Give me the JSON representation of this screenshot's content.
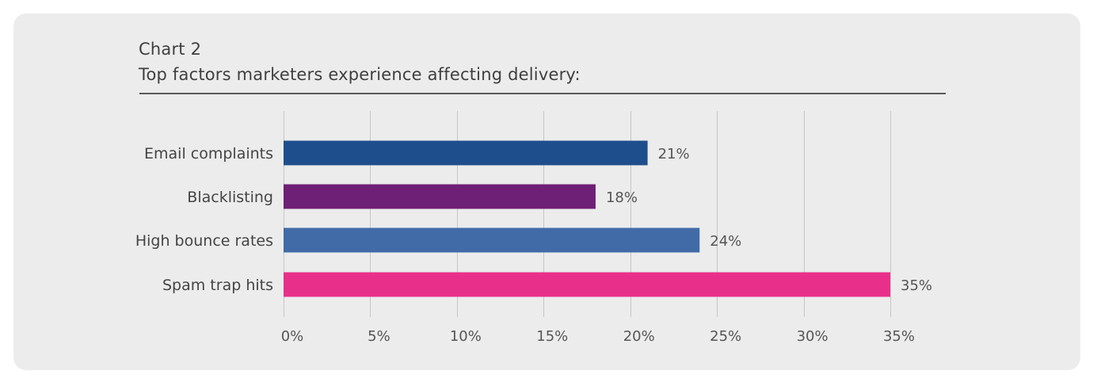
{
  "chart_data": {
    "type": "bar",
    "orientation": "horizontal",
    "title": "Chart 2",
    "subtitle": "Top factors marketers experience affecting delivery:",
    "categories": [
      "Email complaints",
      "Blacklisting",
      "High bounce rates",
      "Spam trap hits"
    ],
    "values": [
      21,
      18,
      24,
      35
    ],
    "value_labels": [
      "21%",
      "18%",
      "24%",
      "35%"
    ],
    "colors": [
      "#1f4e8c",
      "#6e1f76",
      "#416ba7",
      "#e8308a"
    ],
    "xlim": [
      0,
      35
    ],
    "xticks": [
      0,
      5,
      10,
      15,
      20,
      25,
      30,
      35
    ],
    "xtick_labels": [
      "0%",
      "5%",
      "10%",
      "15%",
      "20%",
      "25%",
      "30%",
      "35%"
    ],
    "grid": true,
    "xlabel": "",
    "ylabel": ""
  }
}
